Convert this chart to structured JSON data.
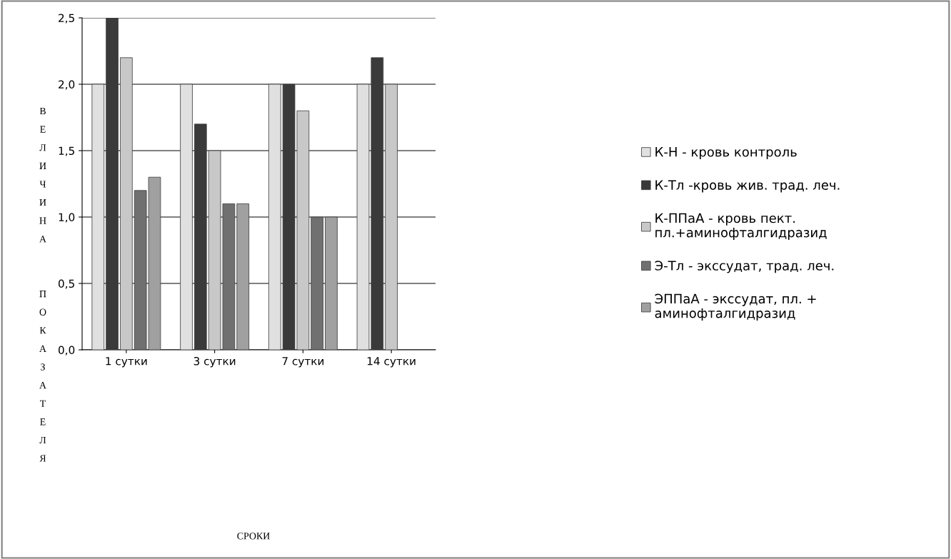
{
  "chart_data": {
    "type": "bar",
    "categories": [
      "1 сутки",
      "3 сутки",
      "7 сутки",
      "14 сутки"
    ],
    "series": [
      {
        "name": "К-Н - кровь контроль",
        "color": "#e0e0e0",
        "values": [
          2.0,
          2.0,
          2.0,
          2.0
        ]
      },
      {
        "name": "К-Тл -кровь жив. трад. леч.",
        "color": "#3a3a3a",
        "values": [
          2.5,
          1.7,
          2.0,
          2.2
        ]
      },
      {
        "name": "К-ППаА - кровь пект.\nпл.+аминофталгидразид",
        "color": "#c8c8c8",
        "values": [
          2.2,
          1.5,
          1.8,
          2.0
        ]
      },
      {
        "name": "Э-Тл - экссудат, трад. леч.",
        "color": "#707070",
        "values": [
          1.2,
          1.1,
          1.0,
          null
        ]
      },
      {
        "name": "ЭППаА - экссудат, пл. +\nаминофталгидразид",
        "color": "#a0a0a0",
        "values": [
          1.3,
          1.1,
          1.0,
          null
        ]
      }
    ],
    "ylim": [
      0,
      2.5
    ],
    "yticks": [
      {
        "value": 0,
        "label": "0,0"
      },
      {
        "value": 0.5,
        "label": "0,5"
      },
      {
        "value": 1.0,
        "label": "1,0"
      },
      {
        "value": 1.5,
        "label": "1,5"
      },
      {
        "value": 2.0,
        "label": "2,0"
      },
      {
        "value": 2.5,
        "label": "2,5"
      }
    ],
    "ylabel": "ВЕЛИЧИНА ПОКАЗАТЕЛЯ",
    "annotations": [
      "СРОКИ"
    ],
    "grid": "y",
    "legend": "right"
  }
}
